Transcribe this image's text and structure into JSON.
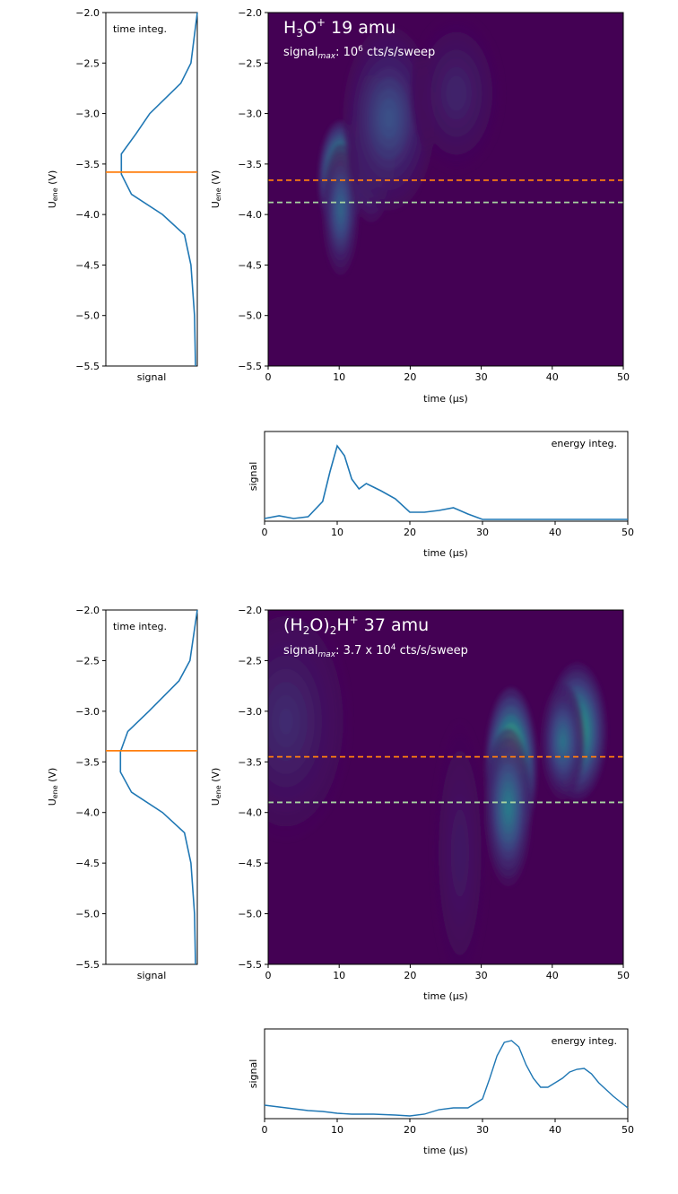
{
  "chart_data": [
    {
      "type": "heatmap",
      "panel": "top",
      "title": "H₃O⁺ 19 amu",
      "title_main": "H₃O",
      "title_sup": "+",
      "title_rest": " 19 amu",
      "signal_label": "signal",
      "signal_sub": "max",
      "signal_text": ": 10",
      "signal_exp": "6",
      "signal_unit": " cts/s/sweep",
      "signal_max": "10^6 cts/s/sweep",
      "xlabel": "time (µs)",
      "ylabel_main": "U",
      "ylabel_sub": "ene",
      "ylabel_unit": " (V)",
      "xlim": [
        0,
        50
      ],
      "ylim": [
        -5.5,
        -2.0
      ],
      "x_ticks": [
        "0",
        "10",
        "20",
        "30",
        "40",
        "50"
      ],
      "y_ticks": [
        "−2.0",
        "−2.5",
        "−3.0",
        "−3.5",
        "−4.0",
        "−4.5",
        "−5.0",
        "−5.5"
      ],
      "colormap": "viridis",
      "blobs": [
        {
          "t": 10.2,
          "u": -3.65,
          "sx": 1.2,
          "su": 0.22,
          "a": 1.0
        },
        {
          "t": 10.2,
          "u": -3.95,
          "sx": 1.0,
          "su": 0.25,
          "a": 0.35
        },
        {
          "t": 14.5,
          "u": -3.35,
          "sx": 1.3,
          "su": 0.28,
          "a": 0.38
        },
        {
          "t": 17.0,
          "u": -3.05,
          "sx": 2.5,
          "su": 0.35,
          "a": 0.27
        },
        {
          "t": 26.5,
          "u": -2.8,
          "sx": 2.5,
          "su": 0.3,
          "a": 0.12
        }
      ],
      "hlines": [
        {
          "u": -3.66,
          "color": "#ff7f0e"
        },
        {
          "u": -3.88,
          "color": "#a8d5a0"
        }
      ],
      "time_integ": {
        "label": "time integ.",
        "xlabel": "signal",
        "marker_u": -3.58,
        "u": [
          -5.5,
          -5.0,
          -4.5,
          -4.2,
          -4.0,
          -3.8,
          -3.6,
          -3.4,
          -3.2,
          -3.0,
          -2.7,
          -2.5,
          -2.0
        ],
        "signal": [
          0.98,
          0.97,
          0.93,
          0.86,
          0.62,
          0.28,
          0.17,
          0.17,
          0.33,
          0.48,
          0.82,
          0.93,
          1.0
        ]
      },
      "energy_integ": {
        "label": "energy integ.",
        "ylabel": "signal",
        "xlabel": "time (µs)",
        "x_ticks": [
          "0",
          "10",
          "20",
          "30",
          "40",
          "50"
        ],
        "x": [
          0,
          2,
          4,
          6,
          8,
          9,
          10,
          11,
          12,
          13,
          14,
          15,
          16,
          18,
          20,
          22,
          24,
          26,
          28,
          30,
          35,
          40,
          45,
          50
        ],
        "y": [
          0.03,
          0.06,
          0.03,
          0.05,
          0.22,
          0.55,
          0.84,
          0.73,
          0.47,
          0.36,
          0.42,
          0.38,
          0.34,
          0.25,
          0.1,
          0.1,
          0.12,
          0.15,
          0.08,
          0.02,
          0.02,
          0.02,
          0.02,
          0.02
        ]
      }
    },
    {
      "type": "heatmap",
      "panel": "bottom",
      "title": "(H₂O)₂H⁺ 37 amu",
      "title_main": "(H₂O)₂H",
      "title_sup": "+",
      "title_rest": " 37 amu",
      "signal_label": "signal",
      "signal_sub": "max",
      "signal_text": ": 3.7 x 10",
      "signal_exp": "4",
      "signal_unit": " cts/s/sweep",
      "signal_max": "3.7 x 10^4 cts/s/sweep",
      "xlabel": "time (µs)",
      "ylabel_main": "U",
      "ylabel_sub": "ene",
      "ylabel_unit": " (V)",
      "xlim": [
        0,
        50
      ],
      "ylim": [
        -5.5,
        -2.0
      ],
      "x_ticks": [
        "0",
        "10",
        "20",
        "30",
        "40",
        "50"
      ],
      "y_ticks": [
        "−2.0",
        "−2.5",
        "−3.0",
        "−3.5",
        "−4.0",
        "−4.5",
        "−5.0",
        "−5.5"
      ],
      "colormap": "viridis",
      "blobs": [
        {
          "t": 34.2,
          "u": -3.55,
          "sx": 1.4,
          "su": 0.3,
          "a": 1.0
        },
        {
          "t": 33.8,
          "u": -3.95,
          "sx": 1.3,
          "su": 0.3,
          "a": 0.45
        },
        {
          "t": 43.5,
          "u": -3.2,
          "sx": 1.6,
          "su": 0.26,
          "a": 0.68
        },
        {
          "t": 41.5,
          "u": -3.3,
          "sx": 1.2,
          "su": 0.22,
          "a": 0.4
        },
        {
          "t": 2.5,
          "u": -3.1,
          "sx": 3.5,
          "su": 0.45,
          "a": 0.14
        },
        {
          "t": 27.0,
          "u": -4.4,
          "sx": 1.5,
          "su": 0.5,
          "a": 0.08
        }
      ],
      "hlines": [
        {
          "u": -3.45,
          "color": "#ff7f0e"
        },
        {
          "u": -3.9,
          "color": "#a8d5a0"
        }
      ],
      "time_integ": {
        "label": "time integ.",
        "xlabel": "signal",
        "marker_u": -3.39,
        "u": [
          -5.5,
          -5.0,
          -4.5,
          -4.2,
          -4.0,
          -3.8,
          -3.6,
          -3.4,
          -3.2,
          -3.0,
          -2.7,
          -2.5,
          -2.0
        ],
        "signal": [
          0.98,
          0.97,
          0.93,
          0.86,
          0.62,
          0.28,
          0.16,
          0.16,
          0.24,
          0.47,
          0.8,
          0.92,
          1.0
        ]
      },
      "energy_integ": {
        "label": "energy integ.",
        "ylabel": "signal",
        "xlabel": "time (µs)",
        "x_ticks": [
          "0",
          "10",
          "20",
          "30",
          "40",
          "50"
        ],
        "x": [
          0,
          2,
          4,
          6,
          8,
          10,
          12,
          15,
          18,
          20,
          22,
          24,
          26,
          28,
          30,
          31,
          32,
          33,
          34,
          35,
          36,
          37,
          38,
          39,
          40,
          41,
          42,
          43,
          44,
          45,
          46,
          48,
          50
        ],
        "y": [
          0.15,
          0.13,
          0.11,
          0.09,
          0.08,
          0.06,
          0.05,
          0.05,
          0.04,
          0.03,
          0.05,
          0.1,
          0.12,
          0.12,
          0.22,
          0.45,
          0.7,
          0.85,
          0.87,
          0.8,
          0.6,
          0.45,
          0.35,
          0.35,
          0.4,
          0.45,
          0.52,
          0.55,
          0.56,
          0.5,
          0.4,
          0.25,
          0.12
        ]
      }
    }
  ]
}
